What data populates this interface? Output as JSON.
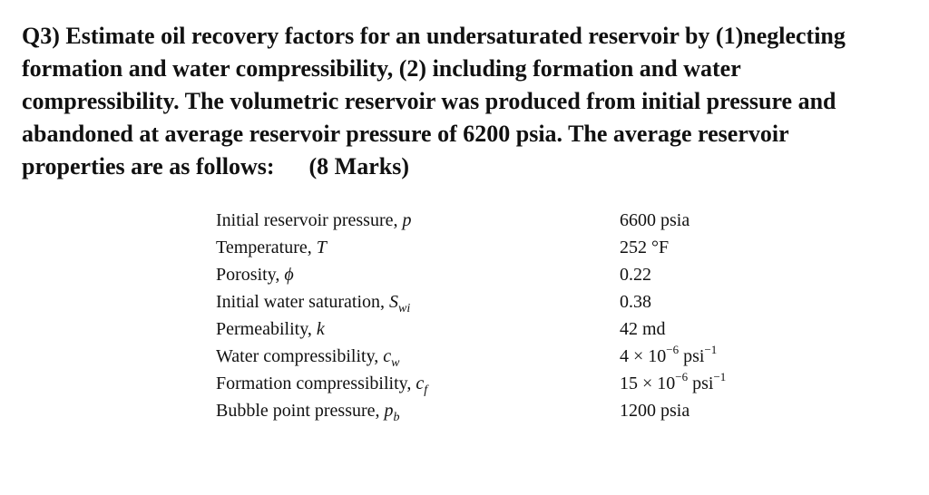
{
  "question": {
    "lines": [
      "Q3) Estimate oil recovery factors for an undersaturated reservoir by (1)neglecting",
      "formation and water compressibility, (2) including formation and water",
      "compressibility. The volumetric reservoir was produced from initial pressure and",
      "abandoned at average reservoir pressure of 6200 psia. The average reservoir"
    ],
    "last_line": "properties are as follows:",
    "marks": "(8 Marks)"
  },
  "properties": [
    {
      "label": "Initial reservoir pressure, ",
      "symbol": "p",
      "subscript": "",
      "value": "6600 psia"
    },
    {
      "label": "Temperature, ",
      "symbol": "T",
      "subscript": "",
      "value": "252 °F"
    },
    {
      "label": "Porosity, ",
      "symbol": "ϕ",
      "subscript": "",
      "value": "0.22"
    },
    {
      "label": "Initial water saturation, ",
      "symbol": "S",
      "subscript": "wi",
      "value": "0.38"
    },
    {
      "label": "Permeability, ",
      "symbol": "k",
      "subscript": "",
      "value": "42 md"
    },
    {
      "label": "Water compressibility, ",
      "symbol": "c",
      "subscript": "w",
      "value_base": "4 × 10",
      "value_exp": "−6",
      "value_unit": " psi",
      "value_unit_exp": "−1"
    },
    {
      "label": "Formation compressibility, ",
      "symbol": "c",
      "subscript": "f",
      "value_base": "15 × 10",
      "value_exp": "−6",
      "value_unit": " psi",
      "value_unit_exp": "−1"
    },
    {
      "label": "Bubble point pressure, ",
      "symbol": "p",
      "subscript": "b",
      "value": "1200 psia"
    }
  ]
}
